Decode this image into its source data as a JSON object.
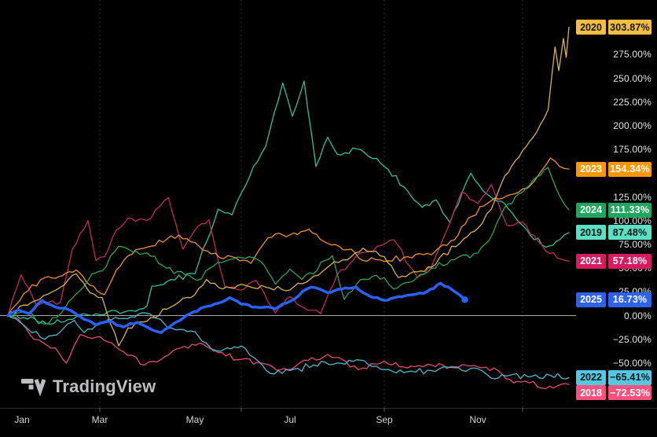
{
  "watermark": {
    "brand": "TradingView"
  },
  "colors": {
    "background": "#000000",
    "zero_line": "#B8BAC0",
    "gridline": "#70737C",
    "axis_text": "#E4E6EA"
  },
  "axes": {
    "y_ticks": [
      {
        "label": "275.00%",
        "value": 275
      },
      {
        "label": "250.00%",
        "value": 250
      },
      {
        "label": "225.00%",
        "value": 225
      },
      {
        "label": "200.00%",
        "value": 200
      },
      {
        "label": "175.00%",
        "value": 175
      },
      {
        "label": "150.00%",
        "value": 150
      },
      {
        "label": "125.00%",
        "value": 125
      },
      {
        "label": "100.00%",
        "value": 100
      },
      {
        "label": "75.00%",
        "value": 75
      },
      {
        "label": "50.00%",
        "value": 50
      },
      {
        "label": "25.00%",
        "value": 25
      },
      {
        "label": "0.00%",
        "value": 0
      },
      {
        "label": "−25.00%",
        "value": -25
      },
      {
        "label": "−50.00%",
        "value": -50
      }
    ],
    "x_ticks": [
      {
        "label": "Jan",
        "month": 0
      },
      {
        "label": "Mar",
        "month": 2
      },
      {
        "label": "May",
        "month": 4
      },
      {
        "label": "Jul",
        "month": 6
      },
      {
        "label": "Sep",
        "month": 8
      },
      {
        "label": "Nov",
        "month": 10
      }
    ],
    "gridline_months": [
      2,
      5,
      8,
      11
    ]
  },
  "chart_data": {
    "type": "line",
    "x_unit": "month of year (0 = Jan 1, 12 = Dec 31)",
    "y_unit": "percent change year-to-date",
    "ylim": [
      -85,
      320
    ],
    "legend_position": "right-edge price labels",
    "grid": "vertical dashed quarter lines, horizontal zero line only",
    "series": [
      {
        "name": "2018",
        "end_label": "−72.53%",
        "end_value": -72.53,
        "line_color": "#E44A78",
        "label_bg": "#F9517B",
        "label_fg": "#FFFFFF",
        "thick": false,
        "points": [
          [
            0,
            0
          ],
          [
            0.2,
            -4
          ],
          [
            0.5,
            -25
          ],
          [
            0.9,
            -34
          ],
          [
            1.15,
            -50
          ],
          [
            1.5,
            -20
          ],
          [
            1.8,
            -24
          ],
          [
            2.0,
            -22
          ],
          [
            2.5,
            -38
          ],
          [
            2.95,
            -52
          ],
          [
            3.3,
            -46
          ],
          [
            3.7,
            -34
          ],
          [
            4.1,
            -29
          ],
          [
            4.5,
            -39
          ],
          [
            5.0,
            -46
          ],
          [
            5.5,
            -51
          ],
          [
            5.95,
            -57
          ],
          [
            6.3,
            -47
          ],
          [
            6.8,
            -41
          ],
          [
            7.1,
            -46
          ],
          [
            7.45,
            -57
          ],
          [
            7.8,
            -51
          ],
          [
            8.0,
            -48
          ],
          [
            8.4,
            -54
          ],
          [
            9.0,
            -52
          ],
          [
            9.5,
            -54
          ],
          [
            10.0,
            -54
          ],
          [
            10.45,
            -58
          ],
          [
            10.8,
            -71
          ],
          [
            11.05,
            -69
          ],
          [
            11.5,
            -77
          ],
          [
            11.75,
            -74
          ],
          [
            12,
            -72.53
          ]
        ]
      },
      {
        "name": "2022",
        "end_label": "−65.41%",
        "end_value": -65.41,
        "line_color": "#4FB8CE",
        "label_bg": "#55C8E0",
        "label_fg": "#10181C",
        "thick": false,
        "points": [
          [
            0,
            0
          ],
          [
            0.3,
            -10
          ],
          [
            0.7,
            -25
          ],
          [
            1.0,
            -17
          ],
          [
            1.35,
            -5
          ],
          [
            1.6,
            -18
          ],
          [
            2.0,
            -7
          ],
          [
            2.5,
            -3
          ],
          [
            2.9,
            3
          ],
          [
            3.2,
            -3
          ],
          [
            3.6,
            -15
          ],
          [
            4.0,
            -17
          ],
          [
            4.4,
            -37
          ],
          [
            4.7,
            -34
          ],
          [
            5.0,
            -32
          ],
          [
            5.6,
            -61
          ],
          [
            6.0,
            -58
          ],
          [
            6.5,
            -52
          ],
          [
            7.0,
            -50
          ],
          [
            7.5,
            -47
          ],
          [
            8.0,
            -57
          ],
          [
            8.5,
            -59
          ],
          [
            9.0,
            -58
          ],
          [
            9.5,
            -55
          ],
          [
            10.0,
            -56
          ],
          [
            10.3,
            -66
          ],
          [
            10.7,
            -63
          ],
          [
            11.2,
            -64
          ],
          [
            11.6,
            -63
          ],
          [
            12,
            -65.41
          ]
        ]
      },
      {
        "name": "2019",
        "end_label": "87.48%",
        "end_value": 87.48,
        "line_color": "#30C0A1",
        "label_bg": "#5BE0C4",
        "label_fg": "#10181C",
        "thick": false,
        "points": [
          [
            0,
            0
          ],
          [
            0.3,
            -2
          ],
          [
            0.8,
            -9
          ],
          [
            1.2,
            -4
          ],
          [
            1.6,
            2
          ],
          [
            2.0,
            1
          ],
          [
            2.6,
            5
          ],
          [
            3.0,
            10
          ],
          [
            3.1,
            31
          ],
          [
            3.5,
            38
          ],
          [
            4.0,
            44
          ],
          [
            4.5,
            112
          ],
          [
            4.8,
            106
          ],
          [
            5.0,
            129
          ],
          [
            5.5,
            178
          ],
          [
            5.85,
            245
          ],
          [
            6.05,
            210
          ],
          [
            6.3,
            247
          ],
          [
            6.55,
            157
          ],
          [
            6.8,
            188
          ],
          [
            7.0,
            170
          ],
          [
            7.5,
            175
          ],
          [
            8.0,
            157
          ],
          [
            8.5,
            131
          ],
          [
            8.8,
            114
          ],
          [
            9.1,
            122
          ],
          [
            9.4,
            98
          ],
          [
            9.85,
            150
          ],
          [
            10.2,
            128
          ],
          [
            10.6,
            118
          ],
          [
            11.0,
            95
          ],
          [
            11.5,
            72
          ],
          [
            11.8,
            80
          ],
          [
            12,
            87.48
          ]
        ]
      },
      {
        "name": "2021",
        "end_label": "57.18%",
        "end_value": 57.18,
        "line_color": "#C22862",
        "label_bg": "#D81A60",
        "label_fg": "#FFFFFF",
        "thick": false,
        "points": [
          [
            0,
            0
          ],
          [
            0.25,
            43
          ],
          [
            0.55,
            10
          ],
          [
            1.0,
            14
          ],
          [
            1.3,
            70
          ],
          [
            1.7,
            100
          ],
          [
            1.9,
            58
          ],
          [
            2.1,
            62
          ],
          [
            2.35,
            90
          ],
          [
            2.6,
            103
          ],
          [
            3.0,
            100
          ],
          [
            3.45,
            124
          ],
          [
            3.75,
            70
          ],
          [
            4.0,
            90
          ],
          [
            4.3,
            101
          ],
          [
            4.65,
            30
          ],
          [
            5.0,
            27
          ],
          [
            5.3,
            37
          ],
          [
            5.7,
            3
          ],
          [
            6.0,
            20
          ],
          [
            6.3,
            8
          ],
          [
            6.65,
            2
          ],
          [
            7.0,
            43
          ],
          [
            7.5,
            66
          ],
          [
            8.2,
            80
          ],
          [
            8.7,
            40
          ],
          [
            9.0,
            51
          ],
          [
            9.35,
            92
          ],
          [
            9.65,
            130
          ],
          [
            10.0,
            118
          ],
          [
            10.3,
            138
          ],
          [
            10.65,
            95
          ],
          [
            11.0,
            98
          ],
          [
            11.5,
            68
          ],
          [
            12,
            57.18
          ]
        ]
      },
      {
        "name": "2023",
        "end_label": "154.34%",
        "end_value": 154.34,
        "line_color": "#F09229",
        "label_bg": "#FF9800",
        "label_fg": "#FFFFFF",
        "thick": false,
        "points": [
          [
            0,
            0
          ],
          [
            0.3,
            23
          ],
          [
            0.7,
            40
          ],
          [
            1.05,
            42
          ],
          [
            1.4,
            48
          ],
          [
            1.75,
            32
          ],
          [
            2.1,
            22
          ],
          [
            2.35,
            48
          ],
          [
            2.6,
            63
          ],
          [
            3.0,
            72
          ],
          [
            3.5,
            84
          ],
          [
            4.0,
            77
          ],
          [
            4.35,
            65
          ],
          [
            4.8,
            62
          ],
          [
            5.2,
            55
          ],
          [
            5.55,
            82
          ],
          [
            6.0,
            85
          ],
          [
            6.4,
            91
          ],
          [
            6.8,
            76
          ],
          [
            7.3,
            70
          ],
          [
            7.55,
            58
          ],
          [
            8.0,
            57
          ],
          [
            8.5,
            62
          ],
          [
            9.0,
            64
          ],
          [
            9.5,
            80
          ],
          [
            9.8,
            103
          ],
          [
            10.3,
            121
          ],
          [
            10.8,
            128
          ],
          [
            11.1,
            134
          ],
          [
            11.4,
            152
          ],
          [
            11.6,
            166
          ],
          [
            11.8,
            157
          ],
          [
            12,
            154.34
          ]
        ]
      },
      {
        "name": "2024",
        "end_label": "111.33%",
        "end_value": 111.33,
        "line_color": "#26A65B",
        "label_bg": "#1FA85D",
        "label_fg": "#FFFFFF",
        "thick": false,
        "points": [
          [
            0,
            0
          ],
          [
            0.3,
            5
          ],
          [
            0.7,
            -9
          ],
          [
            1.0,
            2
          ],
          [
            1.4,
            23
          ],
          [
            1.8,
            44
          ],
          [
            2.05,
            47
          ],
          [
            2.4,
            73
          ],
          [
            2.7,
            67
          ],
          [
            3.0,
            66
          ],
          [
            3.4,
            50
          ],
          [
            3.8,
            43
          ],
          [
            4.05,
            37
          ],
          [
            4.5,
            56
          ],
          [
            5.0,
            61
          ],
          [
            5.4,
            57
          ],
          [
            5.7,
            33
          ],
          [
            6.0,
            49
          ],
          [
            6.25,
            38
          ],
          [
            6.9,
            63
          ],
          [
            7.15,
            17
          ],
          [
            7.5,
            38
          ],
          [
            8.0,
            40
          ],
          [
            8.2,
            28
          ],
          [
            8.6,
            36
          ],
          [
            9.0,
            50
          ],
          [
            9.5,
            59
          ],
          [
            10.0,
            66
          ],
          [
            10.25,
            79
          ],
          [
            10.6,
            114
          ],
          [
            11.0,
            130
          ],
          [
            11.3,
            146
          ],
          [
            11.55,
            156
          ],
          [
            11.8,
            126
          ],
          [
            12,
            111.33
          ]
        ]
      },
      {
        "name": "2020",
        "end_label": "303.87%",
        "end_value": 303.87,
        "line_color": "#D9B34A",
        "label_bg": "#F5BE40",
        "label_fg": "#16181C",
        "thick": false,
        "points": [
          [
            0,
            0
          ],
          [
            0.3,
            11
          ],
          [
            0.6,
            17
          ],
          [
            1.0,
            30
          ],
          [
            1.4,
            44
          ],
          [
            1.75,
            24
          ],
          [
            2.05,
            19
          ],
          [
            2.4,
            -32
          ],
          [
            2.6,
            -13
          ],
          [
            3.0,
            -6
          ],
          [
            3.5,
            9
          ],
          [
            4.0,
            22
          ],
          [
            4.25,
            38
          ],
          [
            4.6,
            28
          ],
          [
            5.0,
            33
          ],
          [
            5.5,
            30
          ],
          [
            6.0,
            27
          ],
          [
            6.85,
            53
          ],
          [
            7.3,
            62
          ],
          [
            7.55,
            71
          ],
          [
            8.0,
            62
          ],
          [
            8.3,
            40
          ],
          [
            8.7,
            46
          ],
          [
            9.0,
            51
          ],
          [
            9.7,
            81
          ],
          [
            10.0,
            92
          ],
          [
            10.3,
            112
          ],
          [
            10.6,
            147
          ],
          [
            11.0,
            174
          ],
          [
            11.3,
            193
          ],
          [
            11.55,
            217
          ],
          [
            11.7,
            283
          ],
          [
            11.78,
            258
          ],
          [
            11.88,
            292
          ],
          [
            11.94,
            272
          ],
          [
            12,
            303.87
          ]
        ]
      },
      {
        "name": "2025",
        "end_label": "16.73%",
        "end_value": 16.73,
        "line_color": "#2962FF",
        "label_bg": "#2E62EA",
        "label_fg": "#FFFFFF",
        "thick": true,
        "points": [
          [
            0,
            0
          ],
          [
            0.2,
            6
          ],
          [
            0.4,
            2
          ],
          [
            0.65,
            16
          ],
          [
            0.9,
            9
          ],
          [
            1.1,
            8
          ],
          [
            1.35,
            3
          ],
          [
            1.6,
            -4
          ],
          [
            1.9,
            -10
          ],
          [
            2.2,
            -6
          ],
          [
            2.5,
            -12
          ],
          [
            2.8,
            -7
          ],
          [
            3.1,
            -15
          ],
          [
            3.3,
            -18
          ],
          [
            3.6,
            -7
          ],
          [
            3.9,
            2
          ],
          [
            4.2,
            9
          ],
          [
            4.5,
            13
          ],
          [
            4.75,
            19
          ],
          [
            5.0,
            12
          ],
          [
            5.3,
            9
          ],
          [
            5.7,
            7
          ],
          [
            6.0,
            15
          ],
          [
            6.45,
            30
          ],
          [
            6.8,
            24
          ],
          [
            7.1,
            28
          ],
          [
            7.4,
            30
          ],
          [
            7.7,
            20
          ],
          [
            8.0,
            16
          ],
          [
            8.3,
            20
          ],
          [
            8.6,
            22
          ],
          [
            8.9,
            25
          ],
          [
            9.2,
            34
          ],
          [
            9.45,
            27
          ],
          [
            9.6,
            22
          ],
          [
            9.72,
            16.73
          ]
        ]
      }
    ]
  }
}
